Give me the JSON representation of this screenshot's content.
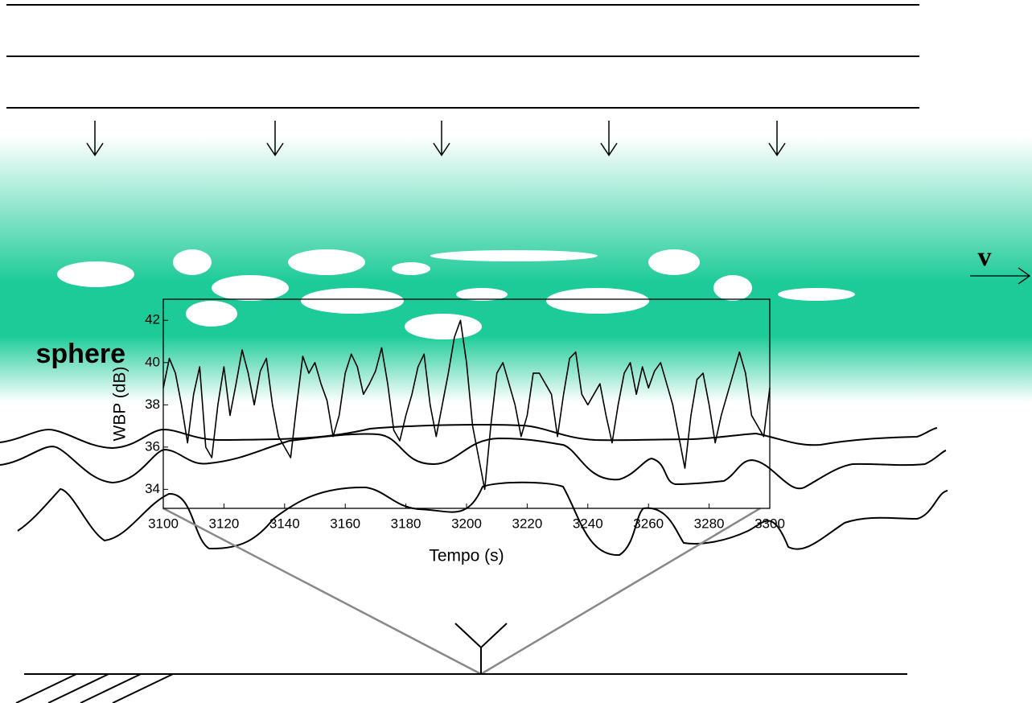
{
  "diagram": {
    "region_label": "sphere",
    "velocity_label": "v"
  },
  "chart_data": {
    "type": "line",
    "x_label": "Tempo (s)",
    "y_label": "WBP (dB)",
    "x": [
      3100,
      3102,
      3104,
      3106,
      3108,
      3110,
      3112,
      3114,
      3116,
      3118,
      3120,
      3122,
      3124,
      3126,
      3128,
      3130,
      3132,
      3134,
      3136,
      3138,
      3140,
      3142,
      3144,
      3146,
      3148,
      3150,
      3152,
      3154,
      3156,
      3158,
      3160,
      3162,
      3164,
      3166,
      3168,
      3170,
      3172,
      3174,
      3176,
      3178,
      3180,
      3182,
      3184,
      3186,
      3188,
      3190,
      3192,
      3194,
      3196,
      3198,
      3200,
      3202,
      3204,
      3206,
      3208,
      3210,
      3212,
      3214,
      3216,
      3218,
      3220,
      3222,
      3224,
      3226,
      3228,
      3230,
      3232,
      3234,
      3236,
      3238,
      3240,
      3242,
      3244,
      3246,
      3248,
      3250,
      3252,
      3254,
      3256,
      3258,
      3260,
      3262,
      3264,
      3266,
      3268,
      3270,
      3272,
      3274,
      3276,
      3278,
      3280,
      3282,
      3284,
      3286,
      3288,
      3290,
      3292,
      3294,
      3296,
      3298,
      3300
    ],
    "series": [
      {
        "color": "#000000",
        "values": [
          38.8,
          40.2,
          39.5,
          38,
          36.2,
          38.5,
          39.8,
          36,
          35.5,
          38,
          39.8,
          37.5,
          39,
          40.6,
          39.5,
          38,
          39.6,
          40.2,
          38,
          36.5,
          36,
          35.5,
          38,
          40.3,
          39.5,
          40,
          39,
          38.2,
          36.5,
          37.5,
          39.5,
          40.4,
          39.8,
          38.5,
          39,
          39.6,
          40.7,
          39,
          36.8,
          36.3,
          37.5,
          38.5,
          39.8,
          40.4,
          38,
          36.5,
          38,
          39.5,
          41.2,
          42,
          40,
          37,
          35.5,
          34,
          37,
          39.5,
          40,
          39,
          38,
          36.5,
          37.5,
          39.5,
          39.5,
          39,
          38.5,
          36.5,
          38.5,
          40.2,
          40.5,
          38.5,
          38,
          38.5,
          39,
          37.5,
          36.2,
          38,
          39.5,
          40,
          38.5,
          39.8,
          38.8,
          39.6,
          40,
          39,
          38,
          36.5,
          35,
          37.5,
          39.2,
          39.5,
          38,
          36.2,
          37.5,
          38.5,
          39.5,
          40.5,
          39.5,
          37.5,
          37,
          36.5,
          38.8
        ]
      }
    ],
    "xlim": [
      3100,
      3300
    ],
    "ylim": [
      33.1,
      43
    ],
    "xticks": [
      3100,
      3120,
      3140,
      3160,
      3180,
      3200,
      3220,
      3240,
      3260,
      3280,
      3300
    ],
    "yticks": [
      34,
      36,
      38,
      40,
      42
    ]
  }
}
